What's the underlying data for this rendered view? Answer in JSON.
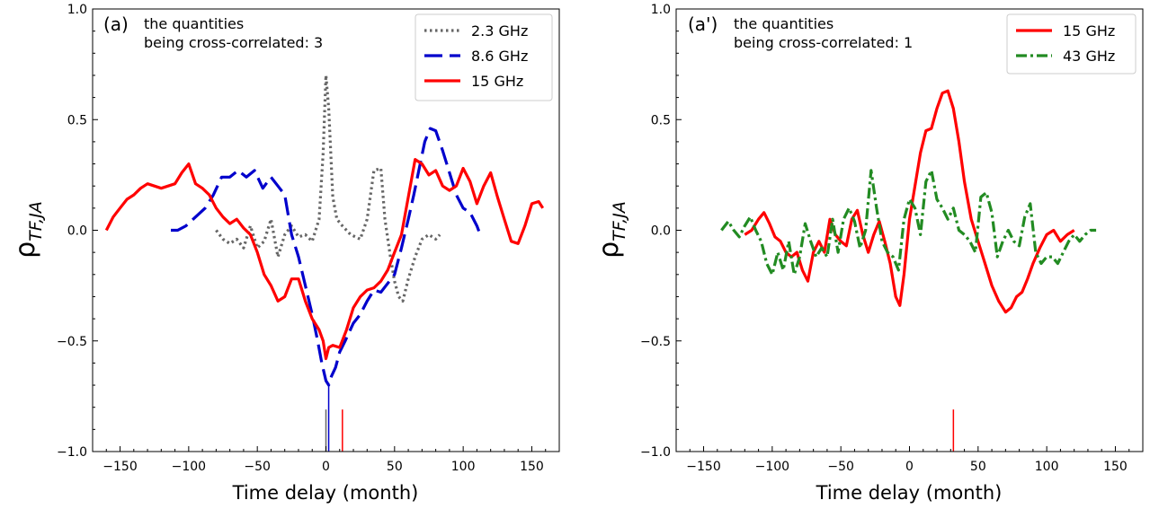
{
  "chart_data": [
    {
      "type": "line",
      "panel_label": "(a)",
      "annotation": [
        "the quantities",
        "being cross-correlated: 3"
      ],
      "xlabel": "Time delay (month)",
      "ylabel": "ρ",
      "ylabel_sub": "TF,JA",
      "xlim": [
        -170,
        170
      ],
      "ylim": [
        -1.0,
        1.0
      ],
      "xticks": [
        "−150",
        "−100",
        "−50",
        "0",
        "50",
        "100",
        "150"
      ],
      "xtick_values": [
        -150,
        -100,
        -50,
        0,
        50,
        100,
        150
      ],
      "yticks": [
        "−1.0",
        "−0.5",
        "0.0",
        "0.5",
        "1.0"
      ],
      "ytick_values": [
        -1.0,
        -0.5,
        0.0,
        0.5,
        1.0
      ],
      "legend_position": "top-right",
      "series": [
        {
          "name": "2.3 GHz",
          "color": "#666666",
          "style": "dotted",
          "x": [
            -80,
            -75,
            -70,
            -65,
            -60,
            -55,
            -50,
            -45,
            -40,
            -35,
            -30,
            -25,
            -20,
            -15,
            -10,
            -5,
            -2,
            0,
            2,
            5,
            8,
            12,
            18,
            25,
            30,
            35,
            40,
            43,
            47,
            50,
            53,
            56,
            60,
            65,
            70,
            75,
            80,
            83
          ],
          "y": [
            0.0,
            -0.04,
            -0.06,
            -0.04,
            -0.08,
            0.02,
            -0.08,
            -0.05,
            0.05,
            -0.12,
            -0.02,
            0.02,
            -0.03,
            -0.02,
            -0.05,
            0.05,
            0.35,
            0.7,
            0.55,
            0.15,
            0.05,
            0.02,
            -0.02,
            -0.04,
            0.05,
            0.27,
            0.28,
            0.05,
            -0.12,
            -0.23,
            -0.3,
            -0.32,
            -0.22,
            -0.12,
            -0.04,
            -0.02,
            -0.04,
            -0.02
          ]
        },
        {
          "name": "8.6 GHz",
          "color": "#0000cc",
          "style": "dashed",
          "x": [
            -113,
            -108,
            -102,
            -95,
            -88,
            -82,
            -76,
            -70,
            -64,
            -58,
            -52,
            -46,
            -40,
            -35,
            -30,
            -25,
            -20,
            -15,
            -10,
            -6,
            -3,
            0,
            2,
            4,
            7,
            10,
            14,
            20,
            25,
            30,
            35,
            40,
            45,
            50,
            55,
            60,
            64,
            68,
            72,
            76,
            80,
            85,
            90,
            95,
            100,
            105,
            110,
            113
          ],
          "y": [
            0.0,
            0.0,
            0.02,
            0.06,
            0.1,
            0.16,
            0.24,
            0.24,
            0.27,
            0.24,
            0.27,
            0.19,
            0.24,
            0.2,
            0.16,
            -0.02,
            -0.12,
            -0.25,
            -0.38,
            -0.5,
            -0.6,
            -0.68,
            -0.7,
            -0.66,
            -0.62,
            -0.55,
            -0.5,
            -0.42,
            -0.38,
            -0.32,
            -0.27,
            -0.28,
            -0.24,
            -0.2,
            -0.08,
            0.05,
            0.16,
            0.28,
            0.4,
            0.46,
            0.45,
            0.36,
            0.26,
            0.16,
            0.1,
            0.08,
            0.02,
            -0.03
          ]
        },
        {
          "name": "15 GHz",
          "color": "#ff0000",
          "style": "solid",
          "x": [
            -160,
            -155,
            -150,
            -145,
            -140,
            -135,
            -130,
            -125,
            -120,
            -115,
            -110,
            -105,
            -100,
            -95,
            -90,
            -85,
            -80,
            -75,
            -70,
            -65,
            -60,
            -55,
            -50,
            -45,
            -40,
            -35,
            -30,
            -25,
            -20,
            -15,
            -10,
            -5,
            -2,
            0,
            2,
            5,
            10,
            15,
            20,
            25,
            30,
            35,
            40,
            45,
            50,
            55,
            60,
            65,
            70,
            75,
            80,
            85,
            90,
            95,
            100,
            105,
            110,
            115,
            120,
            125,
            130,
            135,
            140,
            145,
            150,
            155,
            158
          ],
          "y": [
            0.0,
            0.06,
            0.1,
            0.14,
            0.16,
            0.19,
            0.21,
            0.2,
            0.19,
            0.2,
            0.21,
            0.26,
            0.3,
            0.21,
            0.19,
            0.16,
            0.1,
            0.06,
            0.03,
            0.05,
            0.01,
            -0.02,
            -0.1,
            -0.2,
            -0.25,
            -0.32,
            -0.3,
            -0.22,
            -0.22,
            -0.32,
            -0.4,
            -0.45,
            -0.5,
            -0.58,
            -0.53,
            -0.52,
            -0.53,
            -0.45,
            -0.35,
            -0.3,
            -0.27,
            -0.26,
            -0.23,
            -0.18,
            -0.1,
            -0.02,
            0.15,
            0.32,
            0.3,
            0.25,
            0.27,
            0.2,
            0.18,
            0.2,
            0.28,
            0.22,
            0.12,
            0.2,
            0.26,
            0.15,
            0.05,
            -0.05,
            -0.06,
            0.02,
            0.12,
            0.13,
            0.1
          ]
        }
      ],
      "markers": [
        {
          "x": 0,
          "y0": -1.0,
          "y1": -0.81,
          "color": "#666666"
        },
        {
          "x": 2,
          "y0": -1.0,
          "y1": -0.69,
          "color": "#0000cc"
        },
        {
          "x": 12,
          "y0": -1.0,
          "y1": -0.81,
          "color": "#ff0000"
        }
      ]
    },
    {
      "type": "line",
      "panel_label": "(a')",
      "annotation": [
        "the quantities",
        "being cross-correlated: 1"
      ],
      "xlabel": "Time delay (month)",
      "ylabel": "ρ",
      "ylabel_sub": "TF,JA",
      "xlim": [
        -170,
        170
      ],
      "ylim": [
        -1.0,
        1.0
      ],
      "xticks": [
        "−150",
        "−100",
        "−50",
        "0",
        "50",
        "100",
        "150"
      ],
      "xtick_values": [
        -150,
        -100,
        -50,
        0,
        50,
        100,
        150
      ],
      "yticks": [
        "−1.0",
        "−0.5",
        "0.0",
        "0.5",
        "1.0"
      ],
      "ytick_values": [
        -1.0,
        -0.5,
        0.0,
        0.5,
        1.0
      ],
      "legend_position": "top-right",
      "series": [
        {
          "name": "15 GHz",
          "color": "#ff0000",
          "style": "solid",
          "x": [
            -120,
            -115,
            -110,
            -106,
            -102,
            -98,
            -94,
            -90,
            -86,
            -82,
            -78,
            -74,
            -70,
            -66,
            -62,
            -58,
            -54,
            -50,
            -46,
            -42,
            -38,
            -34,
            -30,
            -26,
            -22,
            -18,
            -14,
            -10,
            -7,
            -4,
            0,
            4,
            8,
            12,
            16,
            20,
            24,
            28,
            32,
            36,
            40,
            45,
            50,
            55,
            60,
            65,
            70,
            74,
            78,
            82,
            86,
            90,
            95,
            100,
            105,
            110,
            115,
            120
          ],
          "y": [
            -0.02,
            0.0,
            0.05,
            0.08,
            0.03,
            -0.03,
            -0.05,
            -0.1,
            -0.12,
            -0.1,
            -0.18,
            -0.23,
            -0.1,
            -0.05,
            -0.1,
            0.05,
            -0.02,
            -0.05,
            -0.07,
            0.05,
            0.09,
            -0.02,
            -0.1,
            -0.02,
            0.04,
            -0.05,
            -0.15,
            -0.3,
            -0.34,
            -0.2,
            0.05,
            0.2,
            0.35,
            0.45,
            0.46,
            0.55,
            0.62,
            0.63,
            0.55,
            0.4,
            0.22,
            0.05,
            -0.05,
            -0.15,
            -0.25,
            -0.32,
            -0.37,
            -0.35,
            -0.3,
            -0.28,
            -0.22,
            -0.15,
            -0.08,
            -0.02,
            0.0,
            -0.05,
            -0.02,
            0.0
          ]
        },
        {
          "name": "43 GHz",
          "color": "#228b22",
          "style": "dashdot",
          "x": [
            -137,
            -132,
            -128,
            -124,
            -120,
            -116,
            -112,
            -108,
            -104,
            -100,
            -96,
            -92,
            -88,
            -84,
            -80,
            -76,
            -72,
            -68,
            -64,
            -60,
            -56,
            -52,
            -48,
            -44,
            -40,
            -36,
            -32,
            -28,
            -24,
            -20,
            -16,
            -12,
            -8,
            -4,
            0,
            4,
            8,
            12,
            16,
            20,
            24,
            28,
            32,
            36,
            40,
            44,
            48,
            52,
            56,
            60,
            64,
            68,
            72,
            76,
            80,
            84,
            88,
            92,
            96,
            100,
            104,
            108,
            112,
            116,
            120,
            124,
            128,
            132,
            136
          ],
          "y": [
            0.0,
            0.04,
            0.0,
            -0.03,
            0.02,
            0.06,
            0.0,
            -0.05,
            -0.15,
            -0.2,
            -0.1,
            -0.18,
            -0.05,
            -0.2,
            -0.12,
            0.03,
            -0.05,
            -0.12,
            -0.08,
            -0.12,
            0.05,
            -0.1,
            0.05,
            0.1,
            0.04,
            -0.08,
            0.0,
            0.27,
            0.1,
            -0.05,
            -0.1,
            -0.12,
            -0.18,
            0.05,
            0.14,
            0.1,
            -0.02,
            0.22,
            0.27,
            0.14,
            0.1,
            0.05,
            0.1,
            0.0,
            -0.02,
            -0.05,
            -0.1,
            0.15,
            0.17,
            0.08,
            -0.12,
            -0.05,
            0.0,
            -0.05,
            -0.07,
            0.06,
            0.12,
            -0.1,
            -0.15,
            -0.12,
            -0.12,
            -0.15,
            -0.1,
            -0.05,
            -0.02,
            -0.05,
            -0.02,
            0.0,
            0.0
          ]
        }
      ],
      "markers": [
        {
          "x": 32,
          "y0": -1.0,
          "y1": -0.81,
          "color": "#ff0000"
        }
      ]
    }
  ]
}
